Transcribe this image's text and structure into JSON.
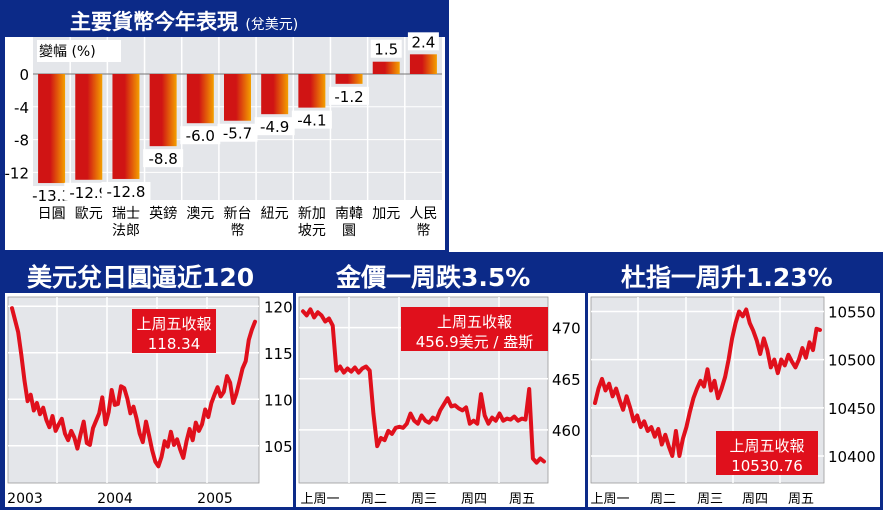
{
  "colors": {
    "panel_blue": "#0c2a88",
    "plot_fill": "#e4e6ea",
    "bar_red": "#d01414",
    "bar_orange": "#f4a000",
    "line_red": "#e0101c",
    "label_box_red": "#e0101c"
  },
  "bar_panel": {
    "title": "主要貨幣今年表現",
    "subtitle": "(兌美元)"
  },
  "chart_data": [
    {
      "type": "bar",
      "ylabel": "變幅 (%)",
      "ylim": [
        -15,
        3
      ],
      "yticks": [
        0,
        -4,
        -8,
        -12
      ],
      "categories": [
        [
          "日圓"
        ],
        [
          "歐元"
        ],
        [
          "瑞士",
          "法郎"
        ],
        [
          "英鎊"
        ],
        [
          "澳元"
        ],
        [
          "新台",
          "幣"
        ],
        [
          "紐元"
        ],
        [
          "新加",
          "坡元"
        ],
        [
          "南韓",
          "圜"
        ],
        [
          "加元"
        ],
        [
          "人民",
          "幣"
        ]
      ],
      "values": [
        -13.3,
        -12.9,
        -12.8,
        -8.8,
        -6.0,
        -5.7,
        -4.9,
        -4.1,
        -1.2,
        1.5,
        2.4
      ],
      "value_labels": [
        "-13.3",
        "-12.9",
        "-12.8",
        "-8.8",
        "-6.0",
        "-5.7",
        "-4.9",
        "-4.1",
        "-1.2",
        "1.5",
        "2.4"
      ]
    },
    {
      "type": "line",
      "title": "美元兌日圓逼近120",
      "xticks": [
        "2003",
        "2004",
        "2005"
      ],
      "yticks": [
        105,
        110,
        115,
        120
      ],
      "ylim": [
        101,
        121
      ],
      "annotation": [
        "上周五收報",
        "118.34"
      ],
      "series": [
        {
          "values": [
            119.8,
            118.5,
            117.2,
            114.8,
            112.0,
            109.8,
            110.5,
            108.8,
            109.6,
            108.4,
            109.1,
            107.8,
            107.0,
            108.2,
            106.6,
            107.3,
            107.9,
            106.3,
            105.6,
            106.6,
            105.9,
            104.7,
            106.2,
            107.6,
            105.3,
            105.1,
            106.9,
            107.7,
            108.5,
            110.2,
            107.3,
            108.6,
            111.0,
            109.4,
            109.5,
            111.4,
            111.2,
            110.1,
            108.5,
            109.2,
            107.9,
            106.3,
            105.4,
            107.6,
            106.1,
            104.5,
            103.3,
            102.8,
            103.8,
            105.5,
            104.9,
            106.5,
            105.1,
            105.7,
            104.6,
            103.7,
            105.5,
            106.8,
            105.6,
            107.5,
            106.6,
            107.3,
            108.9,
            108.1,
            109.6,
            110.5,
            111.3,
            110.3,
            110.8,
            112.5,
            111.8,
            109.6,
            110.6,
            111.9,
            113.3,
            114.1,
            116.4,
            117.5,
            118.34
          ]
        }
      ]
    },
    {
      "type": "line",
      "title": "金價一周跌3.5%",
      "xticks": [
        "上周一",
        "周二",
        "周三",
        "周四",
        "周五"
      ],
      "yticks": [
        460,
        465,
        470
      ],
      "ylim": [
        454.8,
        473
      ],
      "annotation": [
        "上周五收報",
        "456.9美元 / 盎斯"
      ],
      "series": [
        {
          "values": [
            471.6,
            471.2,
            471.8,
            471.0,
            471.5,
            471.2,
            470.6,
            470.9,
            470.2,
            465.8,
            466.2,
            465.6,
            466.0,
            465.7,
            466.1,
            465.6,
            466.0,
            466.2,
            465.8,
            461.6,
            458.4,
            459.2,
            459.0,
            459.9,
            459.6,
            460.2,
            460.3,
            460.2,
            460.6,
            461.6,
            460.9,
            460.6,
            461.4,
            460.9,
            460.7,
            461.2,
            461.0,
            461.9,
            462.5,
            463.1,
            462.3,
            462.4,
            462.1,
            461.9,
            462.2,
            460.6,
            460.9,
            460.6,
            463.5,
            461.4,
            460.6,
            461.2,
            460.9,
            461.6,
            460.9,
            461.1,
            461.0,
            461.3,
            460.9,
            461.1,
            461.0,
            464.0,
            457.2,
            456.8,
            457.2,
            456.9
          ]
        }
      ]
    },
    {
      "type": "line",
      "title": "杜指一周升1.23%",
      "xticks": [
        "上周一",
        "周二",
        "周三",
        "周四",
        "周五"
      ],
      "yticks": [
        10400,
        10450,
        10500,
        10550
      ],
      "ylim": [
        10372,
        10565
      ],
      "annotation": [
        "上周五收報",
        "10530.76"
      ],
      "series": [
        {
          "values": [
            10455,
            10470,
            10480,
            10468,
            10475,
            10462,
            10470,
            10458,
            10448,
            10462,
            10450,
            10436,
            10442,
            10430,
            10436,
            10426,
            10430,
            10420,
            10428,
            10412,
            10422,
            10410,
            10400,
            10426,
            10400,
            10418,
            10430,
            10446,
            10460,
            10470,
            10478,
            10472,
            10490,
            10468,
            10478,
            10460,
            10470,
            10482,
            10500,
            10522,
            10538,
            10550,
            10545,
            10552,
            10538,
            10530,
            10520,
            10506,
            10522,
            10510,
            10492,
            10500,
            10486,
            10500,
            10494,
            10505,
            10498,
            10492,
            10500,
            10512,
            10502,
            10518,
            10510,
            10532,
            10530.76
          ]
        }
      ]
    }
  ]
}
